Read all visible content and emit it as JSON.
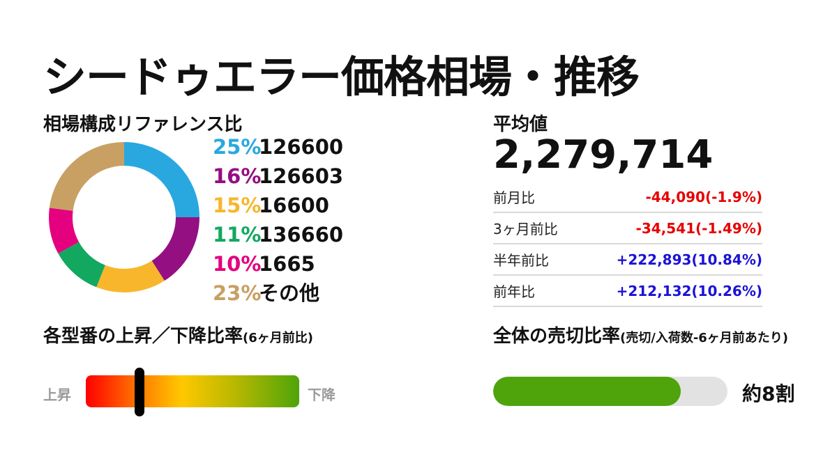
{
  "title": "シードゥエラー価格相場・推移",
  "composition": {
    "heading": "相場構成リファレンス比",
    "legend": [
      {
        "pct": "25%",
        "label": "126600",
        "color": "#29a8e0"
      },
      {
        "pct": "16%",
        "label": "126603",
        "color": "#940f82"
      },
      {
        "pct": "15%",
        "label": "16600",
        "color": "#f8b62d"
      },
      {
        "pct": "11%",
        "label": "136660",
        "color": "#12a860"
      },
      {
        "pct": "10%",
        "label": "1665",
        "color": "#e4007f"
      },
      {
        "pct": "23%",
        "label": "その他",
        "color": "#c8a063"
      }
    ]
  },
  "chart_data": {
    "type": "pie",
    "categories": [
      "126600",
      "126603",
      "16600",
      "136660",
      "1665",
      "その他"
    ],
    "values": [
      25,
      16,
      15,
      11,
      10,
      23
    ],
    "colors": [
      "#29a8e0",
      "#940f82",
      "#f8b62d",
      "#12a860",
      "#e4007f",
      "#c8a063"
    ],
    "title": "相場構成リファレンス比"
  },
  "average": {
    "heading": "平均値",
    "value": "2,279,714",
    "comparisons": [
      {
        "label": "前月比",
        "value": "-44,090(-1.9%)",
        "direction": "neg"
      },
      {
        "label": "3ヶ月前比",
        "value": "-34,541(-1.49%)",
        "direction": "neg"
      },
      {
        "label": "半年前比",
        "value": "+222,893(10.84%)",
        "direction": "pos"
      },
      {
        "label": "前年比",
        "value": "+212,132(10.26%)",
        "direction": "pos"
      }
    ]
  },
  "updown": {
    "heading": "各型番の上昇／下降比率",
    "heading_note": "(6ヶ月前比)",
    "left_label": "上昇",
    "right_label": "下降",
    "marker_fraction": 0.25,
    "gradient_colors": [
      "#ff0000",
      "#ff7a00",
      "#ffc800",
      "#b8b800",
      "#4ea40a"
    ]
  },
  "sellout": {
    "heading": "全体の売切比率",
    "heading_note": "(売切/入荷数-6ヶ月前あたり)",
    "fraction": 0.8,
    "label": "約8割",
    "fill_color": "#4ea40a",
    "track_color": "#e2e2e2"
  }
}
